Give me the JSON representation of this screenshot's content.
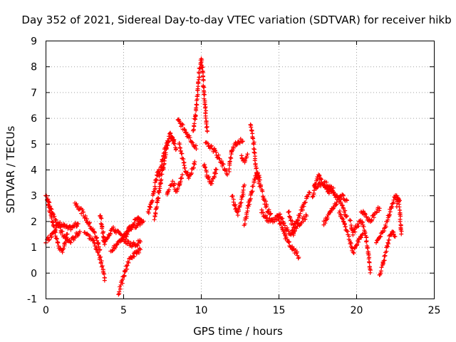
{
  "chart_data": {
    "type": "scatter",
    "title": "Day 352 of 2021, Sidereal Day-to-day VTEC variation (SDTVAR) for receiver hikb",
    "xlabel": "GPS time / hours",
    "ylabel": "SDTVAR / TECUs",
    "xlim": [
      0,
      25
    ],
    "ylim": [
      -1,
      9
    ],
    "xticks": [
      0,
      5,
      10,
      15,
      20,
      25
    ],
    "yticks": [
      -1,
      0,
      1,
      2,
      3,
      4,
      5,
      6,
      7,
      8,
      9
    ],
    "grid": true,
    "marker": "+",
    "series": [
      {
        "name": "SDTVAR",
        "color": "#ff0000",
        "tracks": [
          [
            [
              0.0,
              3.1
            ],
            [
              0.2,
              2.6
            ],
            [
              0.4,
              2.1
            ],
            [
              0.6,
              1.6
            ],
            [
              0.8,
              1.1
            ],
            [
              1.0,
              0.8
            ],
            [
              1.2,
              1.0
            ],
            [
              1.4,
              1.5
            ]
          ],
          [
            [
              0.0,
              1.2
            ],
            [
              0.3,
              1.4
            ],
            [
              0.6,
              1.7
            ],
            [
              0.9,
              1.9
            ],
            [
              1.2,
              1.8
            ],
            [
              1.5,
              1.7
            ],
            [
              1.8,
              1.8
            ],
            [
              2.1,
              1.9
            ]
          ],
          [
            [
              0.1,
              2.9
            ],
            [
              0.4,
              2.4
            ],
            [
              0.7,
              2.0
            ],
            [
              1.0,
              1.6
            ],
            [
              1.3,
              1.3
            ],
            [
              1.6,
              1.2
            ],
            [
              1.9,
              1.4
            ],
            [
              2.2,
              1.6
            ]
          ],
          [
            [
              1.9,
              2.7
            ],
            [
              2.2,
              2.5
            ],
            [
              2.5,
              2.2
            ],
            [
              2.8,
              1.9
            ],
            [
              3.1,
              1.6
            ],
            [
              3.3,
              1.3
            ],
            [
              3.5,
              0.9
            ]
          ],
          [
            [
              2.5,
              1.6
            ],
            [
              2.8,
              1.4
            ],
            [
              3.1,
              1.2
            ],
            [
              3.3,
              0.9
            ],
            [
              3.5,
              0.6
            ],
            [
              3.7,
              0.2
            ],
            [
              3.8,
              -0.3
            ]
          ],
          [
            [
              3.5,
              2.3
            ],
            [
              3.6,
              1.9
            ],
            [
              3.7,
              1.5
            ],
            [
              3.8,
              1.1
            ]
          ],
          [
            [
              3.7,
              1.2
            ],
            [
              4.0,
              1.4
            ],
            [
              4.3,
              1.7
            ],
            [
              4.6,
              1.6
            ],
            [
              4.9,
              1.4
            ],
            [
              5.2,
              1.2
            ],
            [
              5.5,
              1.1
            ],
            [
              5.8,
              1.1
            ],
            [
              6.1,
              1.2
            ]
          ],
          [
            [
              4.2,
              0.9
            ],
            [
              4.5,
              1.0
            ],
            [
              4.8,
              1.2
            ],
            [
              5.1,
              1.5
            ],
            [
              5.4,
              1.7
            ],
            [
              5.7,
              1.8
            ],
            [
              6.0,
              1.9
            ],
            [
              6.3,
              2.0
            ]
          ],
          [
            [
              4.7,
              -0.8
            ],
            [
              4.9,
              -0.4
            ],
            [
              5.1,
              0.0
            ],
            [
              5.3,
              0.4
            ],
            [
              5.5,
              0.6
            ],
            [
              5.7,
              0.7
            ],
            [
              5.9,
              0.8
            ],
            [
              6.1,
              0.9
            ]
          ],
          [
            [
              5.0,
              1.3
            ],
            [
              5.3,
              1.6
            ],
            [
              5.6,
              1.9
            ],
            [
              5.9,
              2.1
            ],
            [
              6.2,
              2.0
            ]
          ],
          [
            [
              6.6,
              2.3
            ],
            [
              6.8,
              2.7
            ],
            [
              7.0,
              3.2
            ],
            [
              7.1,
              3.6
            ],
            [
              7.3,
              4.0
            ]
          ],
          [
            [
              7.0,
              2.1
            ],
            [
              7.2,
              2.8
            ],
            [
              7.4,
              3.5
            ],
            [
              7.6,
              4.2
            ],
            [
              7.8,
              4.9
            ],
            [
              8.0,
              5.4
            ],
            [
              8.2,
              5.2
            ],
            [
              8.4,
              4.8
            ]
          ],
          [
            [
              7.3,
              3.7
            ],
            [
              7.5,
              4.3
            ],
            [
              7.7,
              4.8
            ],
            [
              7.9,
              5.1
            ],
            [
              8.1,
              5.3
            ],
            [
              8.3,
              5.0
            ]
          ],
          [
            [
              7.8,
              3.1
            ],
            [
              8.0,
              3.3
            ],
            [
              8.2,
              3.5
            ],
            [
              8.4,
              3.2
            ],
            [
              8.6,
              3.4
            ],
            [
              8.8,
              3.8
            ]
          ],
          [
            [
              8.5,
              5.9
            ],
            [
              8.7,
              5.8
            ],
            [
              8.9,
              5.6
            ],
            [
              9.1,
              5.4
            ],
            [
              9.3,
              5.2
            ],
            [
              9.5,
              5.0
            ],
            [
              9.7,
              4.8
            ]
          ],
          [
            [
              8.6,
              5.0
            ],
            [
              8.8,
              4.5
            ],
            [
              9.0,
              4.0
            ],
            [
              9.2,
              3.7
            ],
            [
              9.4,
              3.9
            ],
            [
              9.6,
              4.3
            ]
          ],
          [
            [
              9.5,
              5.5
            ],
            [
              9.7,
              6.3
            ],
            [
              9.8,
              7.2
            ],
            [
              9.9,
              7.8
            ],
            [
              10.0,
              8.3
            ],
            [
              10.1,
              7.9
            ],
            [
              10.2,
              7.0
            ],
            [
              10.3,
              6.2
            ],
            [
              10.4,
              5.5
            ]
          ],
          [
            [
              10.2,
              4.2
            ],
            [
              10.4,
              3.8
            ],
            [
              10.6,
              3.5
            ],
            [
              10.8,
              3.6
            ],
            [
              11.0,
              4.0
            ]
          ],
          [
            [
              10.3,
              5.0
            ],
            [
              10.6,
              4.9
            ],
            [
              10.9,
              4.7
            ],
            [
              11.2,
              4.4
            ],
            [
              11.5,
              4.1
            ],
            [
              11.7,
              3.8
            ]
          ],
          [
            [
              11.8,
              4.0
            ],
            [
              12.0,
              4.8
            ],
            [
              12.2,
              5.0
            ],
            [
              12.5,
              5.1
            ],
            [
              12.7,
              5.1
            ]
          ],
          [
            [
              12.0,
              3.0
            ],
            [
              12.2,
              2.6
            ],
            [
              12.4,
              2.3
            ],
            [
              12.6,
              2.8
            ],
            [
              12.8,
              3.4
            ]
          ],
          [
            [
              12.6,
              4.5
            ],
            [
              12.8,
              4.3
            ],
            [
              13.0,
              4.6
            ]
          ],
          [
            [
              12.8,
              1.9
            ],
            [
              13.0,
              2.4
            ],
            [
              13.2,
              3.0
            ],
            [
              13.4,
              3.5
            ],
            [
              13.6,
              3.9
            ],
            [
              13.8,
              3.6
            ]
          ],
          [
            [
              13.2,
              5.8
            ],
            [
              13.4,
              5.0
            ],
            [
              13.5,
              4.2
            ],
            [
              13.7,
              3.6
            ],
            [
              13.9,
              3.2
            ],
            [
              14.1,
              2.8
            ],
            [
              14.3,
              2.4
            ],
            [
              14.5,
              2.3
            ]
          ],
          [
            [
              13.9,
              2.4
            ],
            [
              14.2,
              2.1
            ],
            [
              14.5,
              2.0
            ],
            [
              14.8,
              2.1
            ],
            [
              15.1,
              2.2
            ],
            [
              15.4,
              1.8
            ],
            [
              15.7,
              1.5
            ],
            [
              16.0,
              1.6
            ]
          ],
          [
            [
              14.9,
              2.2
            ],
            [
              15.2,
              1.8
            ],
            [
              15.5,
              1.3
            ],
            [
              15.8,
              1.0
            ],
            [
              16.1,
              0.8
            ],
            [
              16.3,
              0.6
            ]
          ],
          [
            [
              15.6,
              2.4
            ],
            [
              15.8,
              2.0
            ],
            [
              16.0,
              1.8
            ],
            [
              16.2,
              2.0
            ],
            [
              16.4,
              2.3
            ],
            [
              16.6,
              2.6
            ],
            [
              16.8,
              2.9
            ],
            [
              17.0,
              3.1
            ]
          ],
          [
            [
              15.9,
              1.5
            ],
            [
              16.2,
              1.8
            ],
            [
              16.5,
              2.0
            ],
            [
              16.8,
              2.2
            ]
          ],
          [
            [
              17.2,
              2.9
            ],
            [
              17.4,
              3.5
            ],
            [
              17.6,
              3.8
            ],
            [
              17.8,
              3.5
            ],
            [
              18.0,
              3.3
            ],
            [
              18.2,
              3.1
            ],
            [
              18.4,
              3.2
            ],
            [
              18.6,
              3.0
            ]
          ],
          [
            [
              17.3,
              3.3
            ],
            [
              17.6,
              3.4
            ],
            [
              17.9,
              3.5
            ],
            [
              18.2,
              3.4
            ],
            [
              18.5,
              3.2
            ],
            [
              18.8,
              2.9
            ],
            [
              19.1,
              2.6
            ],
            [
              19.4,
              2.2
            ]
          ],
          [
            [
              17.9,
              1.9
            ],
            [
              18.2,
              2.2
            ],
            [
              18.5,
              2.5
            ],
            [
              18.8,
              2.8
            ],
            [
              19.1,
              3.0
            ],
            [
              19.4,
              2.8
            ]
          ],
          [
            [
              18.9,
              2.4
            ],
            [
              19.2,
              2.0
            ],
            [
              19.4,
              1.6
            ],
            [
              19.6,
              1.2
            ],
            [
              19.8,
              0.8
            ],
            [
              20.0,
              1.0
            ],
            [
              20.2,
              1.3
            ],
            [
              20.4,
              1.5
            ]
          ],
          [
            [
              19.6,
              2.0
            ],
            [
              19.8,
              1.5
            ],
            [
              20.0,
              1.8
            ],
            [
              20.3,
              2.0
            ],
            [
              20.6,
              1.5
            ],
            [
              20.8,
              0.7
            ],
            [
              20.9,
              0.0
            ]
          ],
          [
            [
              20.3,
              2.4
            ],
            [
              20.6,
              2.2
            ],
            [
              20.9,
              2.0
            ],
            [
              21.2,
              2.3
            ],
            [
              21.5,
              2.5
            ]
          ],
          [
            [
              21.3,
              1.2
            ],
            [
              21.5,
              1.4
            ],
            [
              21.7,
              1.6
            ],
            [
              21.9,
              1.8
            ],
            [
              22.1,
              2.2
            ],
            [
              22.3,
              2.6
            ],
            [
              22.5,
              3.0
            ],
            [
              22.8,
              2.8
            ]
          ],
          [
            [
              21.5,
              -0.1
            ],
            [
              21.7,
              0.3
            ],
            [
              21.9,
              0.8
            ],
            [
              22.1,
              1.3
            ],
            [
              22.3,
              1.6
            ],
            [
              22.5,
              1.4
            ]
          ],
          [
            [
              22.6,
              2.6
            ],
            [
              22.7,
              2.9
            ],
            [
              22.8,
              2.5
            ],
            [
              22.9,
              1.5
            ]
          ]
        ]
      }
    ]
  }
}
